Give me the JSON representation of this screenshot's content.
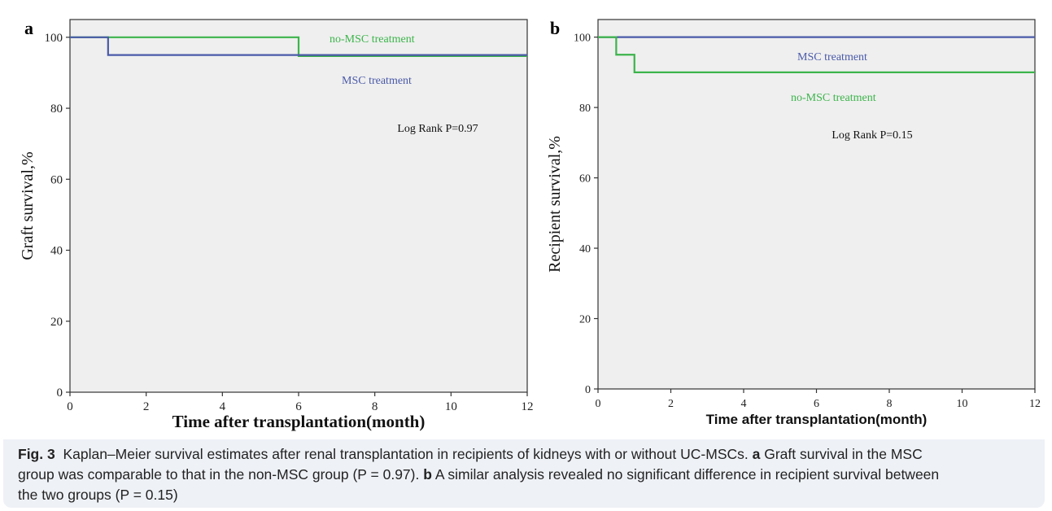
{
  "chart_data": [
    {
      "panel_label": "a",
      "type": "line",
      "step": true,
      "xlabel": "Time after transplantation(month)",
      "ylabel": "Graft survival,%",
      "xlim": [
        0,
        12
      ],
      "ylim": [
        0,
        105
      ],
      "xticks": [
        "0",
        "2",
        "4",
        "6",
        "8",
        "10",
        "12"
      ],
      "yticks": [
        "0",
        "20",
        "40",
        "60",
        "80",
        "100"
      ],
      "annotation": "Log Rank P=0.97",
      "series": [
        {
          "name": "no-MSC treatment",
          "color": "#3cb44b",
          "x": [
            0,
            6,
            6,
            12
          ],
          "y": [
            100,
            100,
            94.7,
            94.7
          ]
        },
        {
          "name": "MSC treatment",
          "color": "#4a5aa8",
          "x": [
            0,
            1,
            1,
            12
          ],
          "y": [
            100,
            100,
            95,
            95
          ]
        }
      ]
    },
    {
      "panel_label": "b",
      "type": "line",
      "step": true,
      "xlabel": "Time after transplantation(month)",
      "ylabel": "Recipient survival,%",
      "xlim": [
        0,
        12
      ],
      "ylim": [
        0,
        105
      ],
      "xticks": [
        "0",
        "2",
        "4",
        "6",
        "8",
        "10",
        "12"
      ],
      "yticks": [
        "0",
        "20",
        "40",
        "60",
        "80",
        "100"
      ],
      "annotation": "Log Rank P=0.15",
      "series": [
        {
          "name": "MSC treatment",
          "color": "#4a5aa8",
          "x": [
            0,
            12
          ],
          "y": [
            100,
            100
          ]
        },
        {
          "name": "no-MSC treatment",
          "color": "#3cb44b",
          "x": [
            0,
            0.5,
            0.5,
            1,
            1,
            12
          ],
          "y": [
            100,
            100,
            95,
            95,
            90,
            90
          ]
        }
      ]
    }
  ],
  "caption": {
    "fig_label": "Fig. 3",
    "line1_text": "Kaplan–Meier survival estimates after renal transplantation in recipients of kidneys with or without UC-MSCs.",
    "line1_a": "a",
    "line1_after_a": "Graft survival in the MSC",
    "line2_text": "group was comparable to that in the non-MSC group (P = 0.97).",
    "line2_b": "b",
    "line2_after_b": "A similar analysis revealed no significant difference in recipient survival between",
    "line3_text": "the two groups (P = 0.15)"
  }
}
